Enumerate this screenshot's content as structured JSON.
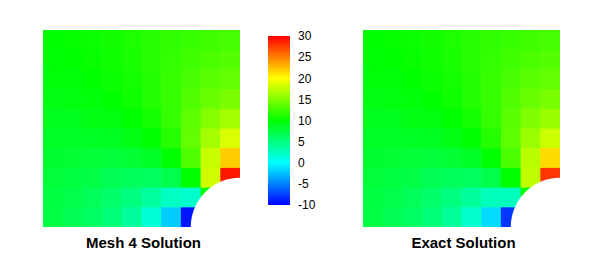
{
  "chart_data": {
    "type": "heatmap",
    "tick_labels": false,
    "colorbar_range": [
      -10,
      30
    ],
    "colorbar_ticks": [
      -10,
      -5,
      0,
      5,
      10,
      15,
      20,
      25,
      30
    ],
    "panels": [
      {
        "title": "Mesh 4 Solution",
        "cells": [
          [
            10,
            10.2,
            10.4,
            10.7,
            11.1,
            11.5,
            11.9,
            12.2,
            12.5,
            12.7
          ],
          [
            9.8,
            10,
            10.3,
            10.6,
            11.0,
            11.5,
            12.0,
            12.5,
            12.9,
            13.2
          ],
          [
            9.6,
            9.7,
            10,
            10.4,
            10.8,
            11.4,
            12.1,
            12.8,
            13.5,
            13.8
          ],
          [
            9.3,
            9.4,
            9.6,
            10,
            10.5,
            11.3,
            12.2,
            13.2,
            14.1,
            14.8
          ],
          [
            8.9,
            9.0,
            9.2,
            9.5,
            10,
            10.8,
            12.0,
            13.6,
            15.2,
            16.3
          ],
          [
            8.5,
            8.5,
            8.6,
            8.7,
            9.2,
            10,
            11.5,
            13.8,
            16.5,
            18.6
          ],
          [
            8.1,
            8.0,
            7.9,
            7.8,
            8.0,
            8.6,
            10,
            13.1,
            17.8,
            22.0
          ],
          [
            7.8,
            7.5,
            7.2,
            6.8,
            6.5,
            6.3,
            7.0,
            10,
            18.2,
            29.1
          ],
          [
            7.5,
            7.1,
            6.5,
            5.9,
            5.0,
            3.8,
            2.4,
            2.0,
            10,
            null
          ],
          [
            7.3,
            6.8,
            6.2,
            5.3,
            3.9,
            1.7,
            -2.0,
            -9.2,
            null,
            null
          ]
        ]
      },
      {
        "title": "Exact Solution",
        "cells": [
          [
            10,
            10.2,
            10.4,
            10.7,
            11.1,
            11.5,
            11.9,
            12.2,
            12.5,
            12.7
          ],
          [
            9.8,
            10,
            10.3,
            10.6,
            11.0,
            11.5,
            12.0,
            12.5,
            12.9,
            13.2
          ],
          [
            9.6,
            9.7,
            10,
            10.4,
            10.8,
            11.4,
            12.1,
            12.8,
            13.5,
            13.8
          ],
          [
            9.3,
            9.4,
            9.6,
            10,
            10.5,
            11.3,
            12.2,
            13.2,
            14.1,
            14.7
          ],
          [
            8.9,
            9.0,
            9.2,
            9.5,
            10,
            10.8,
            12.0,
            13.5,
            15.0,
            16.0
          ],
          [
            8.5,
            8.5,
            8.6,
            8.7,
            9.2,
            10,
            11.4,
            13.6,
            16.1,
            18.0
          ],
          [
            8.1,
            8.0,
            7.9,
            7.8,
            8.0,
            8.6,
            10,
            12.9,
            17.3,
            21.4
          ],
          [
            7.8,
            7.5,
            7.2,
            6.8,
            6.5,
            6.4,
            7.1,
            10,
            17.5,
            27.9
          ],
          [
            7.5,
            7.1,
            6.5,
            5.9,
            5.0,
            3.9,
            2.7,
            2.5,
            10,
            null
          ],
          [
            7.3,
            6.8,
            6.2,
            5.3,
            4.0,
            2.0,
            -1.4,
            -7.9,
            null,
            null
          ]
        ]
      }
    ]
  }
}
